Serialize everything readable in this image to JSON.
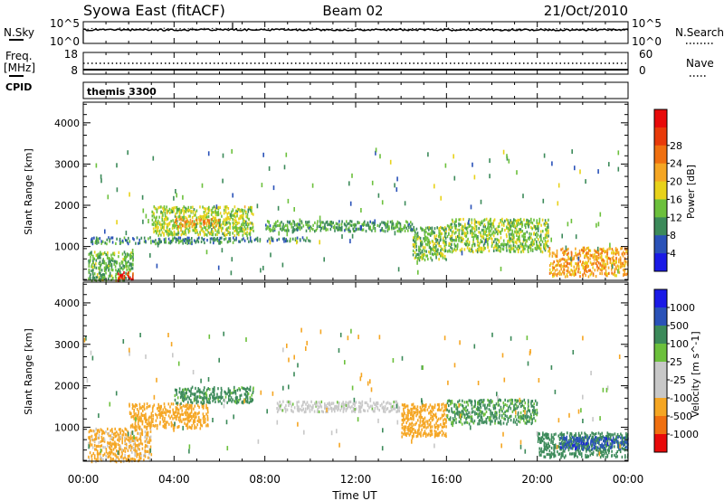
{
  "header": {
    "station": "Syowa East (fitACF)",
    "beam": "Beam 02",
    "date": "21/Oct/2010"
  },
  "top_panels": {
    "nsky_label": "N.Sky",
    "nsky_ticks": [
      "10^5",
      "10^0"
    ],
    "nsearch_label": "N.Search",
    "nsearch_ticks": [
      "10^5",
      "10^0"
    ],
    "freq_label_1": "Freq.",
    "freq_label_2": "[MHz]",
    "freq_ticks": [
      "18",
      "8"
    ],
    "nave_label": "Nave",
    "nave_ticks": [
      "60",
      "0"
    ],
    "cpid_label": "CPID",
    "cpid_value": "themis 3300"
  },
  "time_axis": {
    "xlabel": "Time UT",
    "ticks": [
      "00:00",
      "04:00",
      "08:00",
      "12:00",
      "16:00",
      "20:00",
      "00:00"
    ]
  },
  "colors": {
    "power": [
      "#1a1ae6",
      "#2a52b8",
      "#3c8a5a",
      "#6cc03c",
      "#e8d21a",
      "#f5a623",
      "#f07010",
      "#e83a0a",
      "#e80a0a"
    ],
    "velocity": [
      "#e80a0a",
      "#f07010",
      "#f5a623",
      "#c8c8c8",
      "#c8c8c8",
      "#6cc03c",
      "#3c8a5a",
      "#2a52b8",
      "#1a1ae6"
    ]
  },
  "chart_data": [
    {
      "type": "heatmap",
      "panel": "power",
      "xlabel": "Time UT",
      "ylabel": "Slant Range [km]",
      "yticks": [
        "1000",
        "2000",
        "3000",
        "4000"
      ],
      "ylim": [
        180,
        4500
      ],
      "xlim": [
        0,
        24
      ],
      "colorbar_label": "Power [dB]",
      "colorbar_ticks": [
        "4",
        "8",
        "12",
        "16",
        "20",
        "24",
        "28"
      ],
      "colorbar_range": [
        0,
        30
      ],
      "bands": [
        {
          "t0": 0.2,
          "t1": 2.2,
          "r0": 200,
          "r1": 900,
          "val": 10
        },
        {
          "t0": 0.3,
          "t1": 7.0,
          "r0": 1100,
          "r1": 1250,
          "val": 7
        },
        {
          "t0": 3.0,
          "t1": 7.5,
          "r0": 1300,
          "r1": 2000,
          "val": 13
        },
        {
          "t0": 4.0,
          "t1": 6.0,
          "r0": 1500,
          "r1": 1700,
          "val": 20
        },
        {
          "t0": 7.0,
          "t1": 10.0,
          "r0": 1150,
          "r1": 1250,
          "val": 6
        },
        {
          "t0": 8.0,
          "t1": 14.5,
          "r0": 1400,
          "r1": 1650,
          "val": 9
        },
        {
          "t0": 14.5,
          "t1": 16.0,
          "r0": 700,
          "r1": 1500,
          "val": 11
        },
        {
          "t0": 16.0,
          "t1": 20.5,
          "r0": 900,
          "r1": 1700,
          "val": 12
        },
        {
          "t0": 20.5,
          "t1": 24.0,
          "r0": 300,
          "r1": 1000,
          "val": 19
        },
        {
          "t0": 1.5,
          "t1": 2.2,
          "r0": 200,
          "r1": 400,
          "val": 28
        }
      ]
    },
    {
      "type": "heatmap",
      "panel": "velocity",
      "xlabel": "Time UT",
      "ylabel": "Slant Range [km]",
      "yticks": [
        "1000",
        "2000",
        "3000",
        "4000"
      ],
      "ylim": [
        180,
        4500
      ],
      "xlim": [
        0,
        24
      ],
      "colorbar_label": "Velocity [m s^-1]",
      "colorbar_ticks": [
        "-1000",
        "-500",
        "-100",
        "-25",
        "25",
        "100",
        "500",
        "1000"
      ],
      "bands": [
        {
          "t0": 0.2,
          "t1": 3.0,
          "r0": 200,
          "r1": 1000,
          "val": -150
        },
        {
          "t0": 2.0,
          "t1": 5.5,
          "r0": 1000,
          "r1": 1600,
          "val": -200
        },
        {
          "t0": 4.0,
          "t1": 7.5,
          "r0": 1600,
          "r1": 2000,
          "val": 150
        },
        {
          "t0": 8.5,
          "t1": 14.0,
          "r0": 1400,
          "r1": 1650,
          "val": 0
        },
        {
          "t0": 14.0,
          "t1": 16.0,
          "r0": 800,
          "r1": 1600,
          "val": -200
        },
        {
          "t0": 16.0,
          "t1": 20.0,
          "r0": 1100,
          "r1": 1700,
          "val": 120
        },
        {
          "t0": 20.0,
          "t1": 24.0,
          "r0": 300,
          "r1": 900,
          "val": 200
        },
        {
          "t0": 21.0,
          "t1": 24.0,
          "r0": 500,
          "r1": 800,
          "val": 700
        }
      ]
    }
  ]
}
